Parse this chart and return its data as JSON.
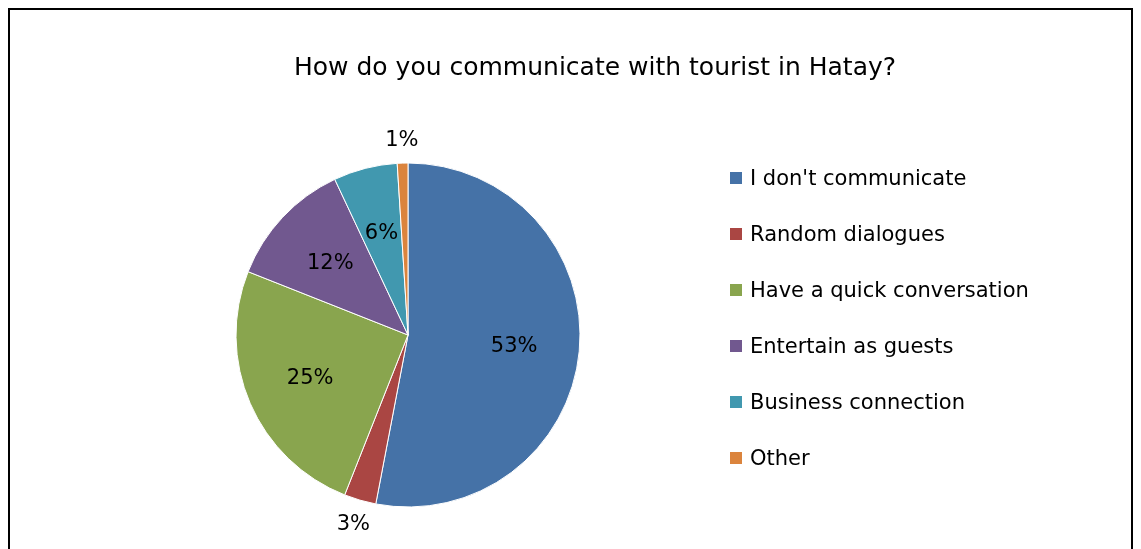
{
  "chart_data": {
    "type": "pie",
    "title": "How do you communicate with tourist in Hatay?",
    "categories": [
      "I don't communicate",
      "Random dialogues",
      "Have a quick conversation",
      "Entertain as guests",
      "Business connection",
      "Other"
    ],
    "values": [
      53,
      3,
      25,
      12,
      6,
      1
    ],
    "colors": [
      "#4572a7",
      "#aa4643",
      "#89a54e",
      "#71588f",
      "#4198af",
      "#db843d"
    ],
    "value_labels": [
      "53%",
      "3%",
      "25%",
      "12%",
      "6%",
      "1%"
    ],
    "legend": "right"
  }
}
